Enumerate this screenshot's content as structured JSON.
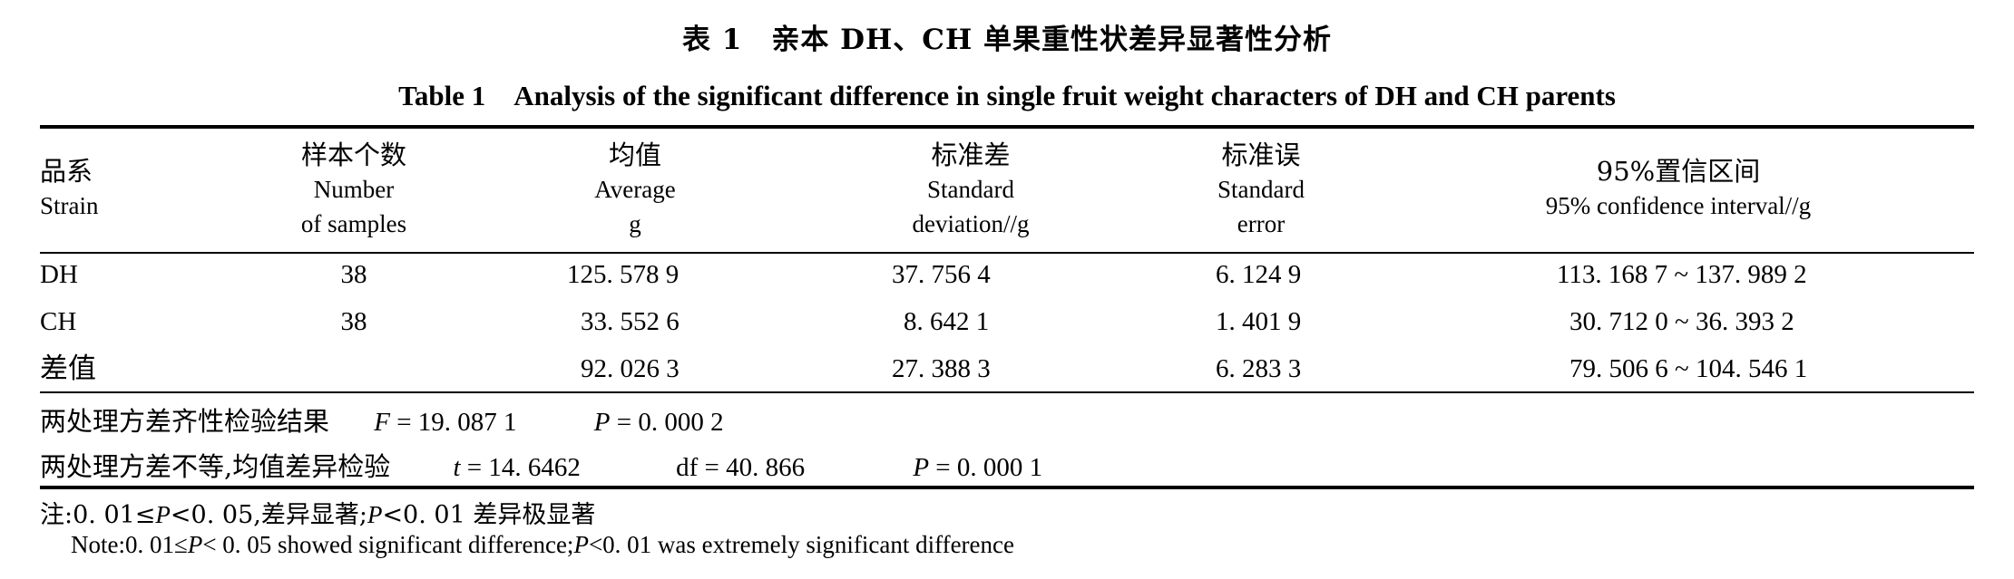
{
  "title": {
    "cn": "表 1　亲本 DH、CH 单果重性状差异显著性分析",
    "en": "Table 1　Analysis of the significant difference in single fruit weight characters of DH and CH parents"
  },
  "headers": [
    {
      "cn": "品系",
      "en1": "Strain",
      "en2": ""
    },
    {
      "cn": "样本个数",
      "en1": "Number",
      "en2": "of samples"
    },
    {
      "cn": "均值",
      "en1": "Average",
      "en2": "g"
    },
    {
      "cn": "标准差",
      "en1": "Standard",
      "en2": "deviation//g"
    },
    {
      "cn": "标准误",
      "en1": "Standard",
      "en2": "error"
    },
    {
      "cn": "95%置信区间",
      "en1": "95% confidence interval//g",
      "en2": ""
    }
  ],
  "rows": [
    {
      "strain": "DH",
      "n": "38",
      "avg": "125. 578 9",
      "sd": "37. 756 4",
      "se": "6. 124 9",
      "ci": "113. 168 7 ~ 137. 989 2"
    },
    {
      "strain": "CH",
      "n": "38",
      "avg": "33. 552 6",
      "sd": "8. 642 1",
      "se": "1. 401 9",
      "ci": "30. 712 0 ~ 36. 393 2"
    },
    {
      "strain": "差值",
      "n": "",
      "avg": "92. 026 3",
      "sd": "27. 388 3",
      "se": "6. 283 3",
      "ci": "79. 506 6 ~ 104. 546 1"
    }
  ],
  "stats": {
    "line1_label": "两处理方差齐性检验结果",
    "line1_f_sym": "F",
    "line1_f": " = 19. 087 1",
    "line1_p_sym": "P",
    "line1_p": " = 0. 000 2",
    "line2_label": "两处理方差不等,均值差异检验",
    "line2_t_sym": "t",
    "line2_t": " = 14. 6462",
    "line2_df": "df = 40. 866",
    "line2_p_sym": "P",
    "line2_p": " = 0. 000 1"
  },
  "notes": {
    "cn_a": "注:0. 01≤",
    "cn_p1": "P",
    "cn_b": "<0. 05,差异显著;",
    "cn_p2": "P",
    "cn_c": "<0. 01 差异极显著",
    "en_a": "Note:0. 01≤",
    "en_p1": "P",
    "en_b": "< 0. 05 showed significant difference;",
    "en_p2": "P",
    "en_c": "<0. 01 was extremely significant difference"
  }
}
